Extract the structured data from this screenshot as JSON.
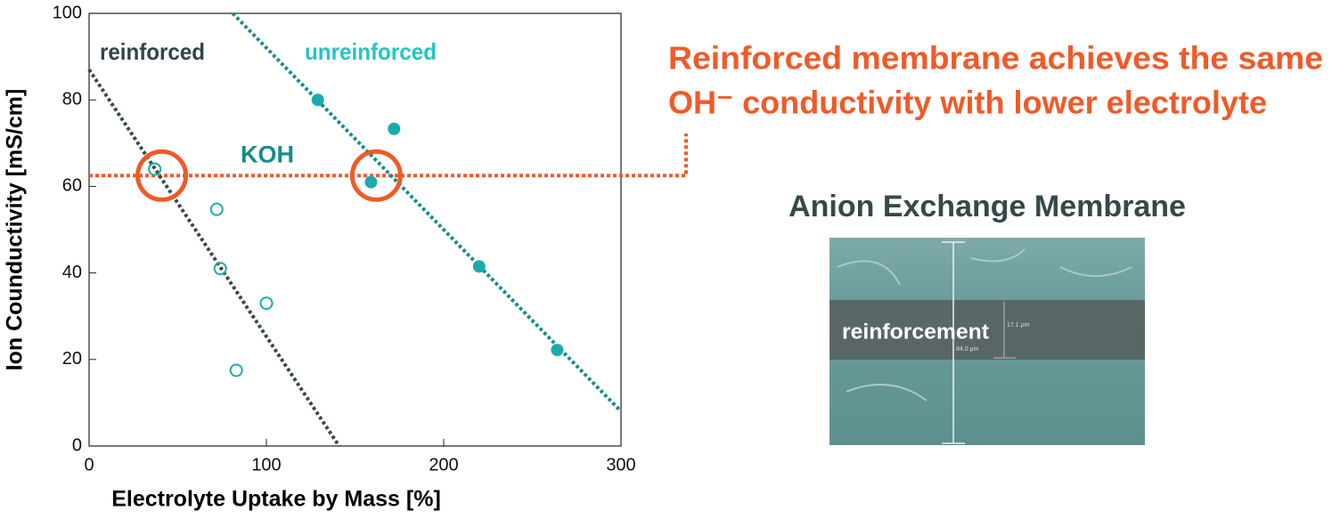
{
  "chart_data": {
    "type": "scatter",
    "x_label": "Electrolyte Uptake by Mass [%]",
    "y_label": "Ion Counductivity [mS/cm]",
    "xlim": [
      0,
      300
    ],
    "ylim": [
      0,
      100
    ],
    "xticks": [
      0,
      100,
      200,
      300
    ],
    "yticks": [
      0,
      20,
      40,
      60,
      80,
      100
    ],
    "series": [
      {
        "name": "reinforced",
        "color": "#1aacac",
        "label_color": "#2f4646",
        "filled": false,
        "x": [
          37,
          72,
          74,
          100,
          83
        ],
        "values": [
          64,
          54.7,
          41,
          33,
          17.5
        ],
        "trend": {
          "color": "#384848",
          "x": [
            0,
            141
          ],
          "values": [
            87,
            0
          ]
        }
      },
      {
        "name": "unreinforced",
        "color": "#1aacac",
        "label_color": "#22c4c4",
        "filled": true,
        "x": [
          129,
          172,
          159,
          220,
          264
        ],
        "values": [
          80,
          73.3,
          61,
          41.5,
          22.2
        ],
        "trend": {
          "color": "#148c8c",
          "x": [
            81,
            300
          ],
          "values": [
            100,
            8
          ]
        }
      }
    ],
    "koh": {
      "label": "KOH",
      "value": 62.5,
      "color": "#f05a28",
      "label_color": "#148c8c"
    },
    "highlights": [
      {
        "x": 41,
        "y": 62.5
      },
      {
        "x": 162,
        "y": 62.5
      }
    ],
    "annotation": [
      "Reinforced membrane achieves the same",
      "OH⁻ conductivity with lower electrolyte"
    ],
    "image": {
      "title": "Anion Exchange Membrane",
      "band_label": "reinforcement",
      "scale_labels": [
        "17.1 µm",
        "84.0 µm"
      ]
    }
  }
}
